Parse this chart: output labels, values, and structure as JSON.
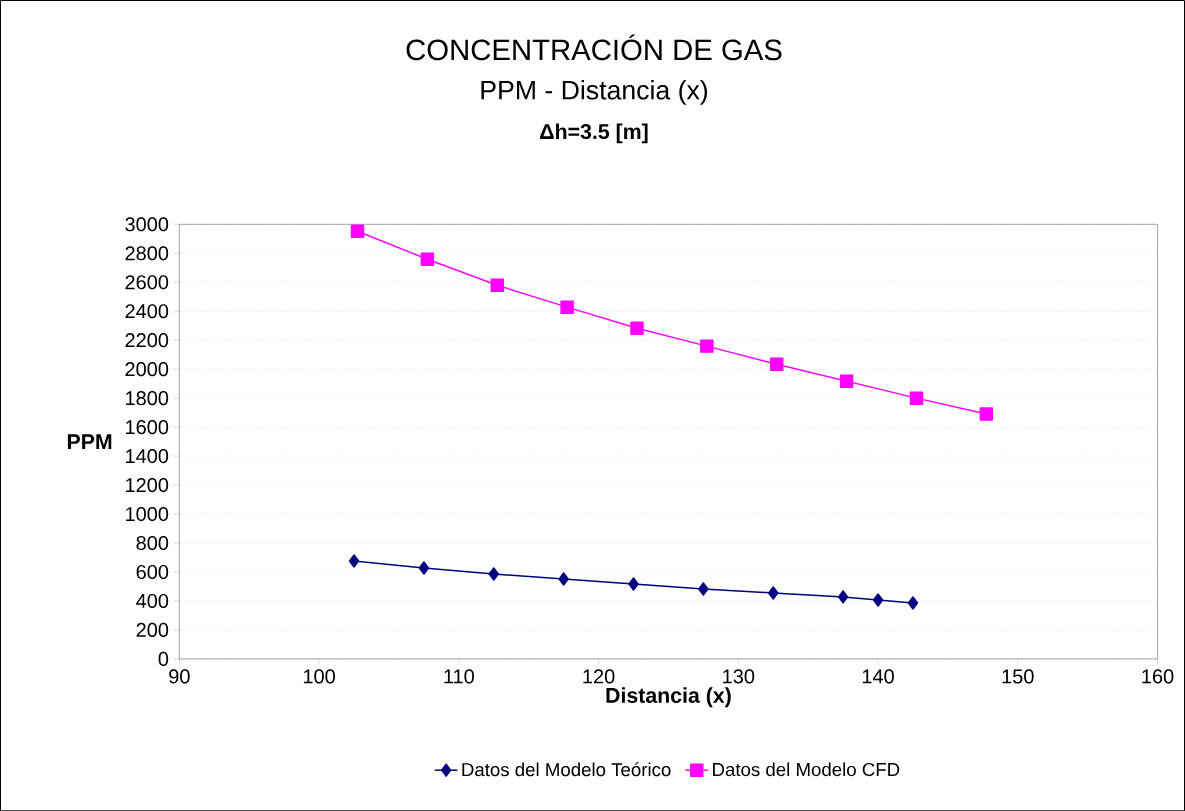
{
  "chart_data": {
    "type": "line",
    "title": "CONCENTRACIÓN DE GAS",
    "subtitle": "PPM - Distancia (x)",
    "annotations": [
      "Δh=3.5 [m]"
    ],
    "xlabel": "Distancia (x)",
    "ylabel": "PPM",
    "xlim": [
      90,
      160
    ],
    "xticks": [
      90,
      100,
      110,
      120,
      130,
      140,
      150,
      160
    ],
    "ylim": [
      0,
      3000
    ],
    "yticks": [
      0,
      200,
      400,
      600,
      800,
      1000,
      1200,
      1400,
      1600,
      1800,
      2000,
      2200,
      2400,
      2600,
      2800,
      3000
    ],
    "grid": "y",
    "legend": "bottom",
    "line_style": "solid",
    "series": [
      {
        "name": "Datos del Modelo Teórico",
        "color": "#000080",
        "marker": "diamond",
        "x": [
          102.5,
          107.5,
          112.5,
          117.5,
          122.5,
          127.5,
          132.5,
          137.5,
          140,
          142.5
        ],
        "values": [
          676,
          628,
          586,
          552,
          517,
          483,
          455,
          428,
          407,
          386
        ]
      },
      {
        "name": "Datos del Modelo CFD",
        "color": "#ff00ff",
        "marker": "square",
        "x": [
          102.75,
          107.75,
          112.75,
          117.75,
          122.75,
          127.75,
          132.75,
          137.75,
          142.75,
          147.75
        ],
        "values": [
          2952,
          2759,
          2579,
          2428,
          2283,
          2159,
          2034,
          1917,
          1800,
          1690
        ]
      }
    ]
  }
}
